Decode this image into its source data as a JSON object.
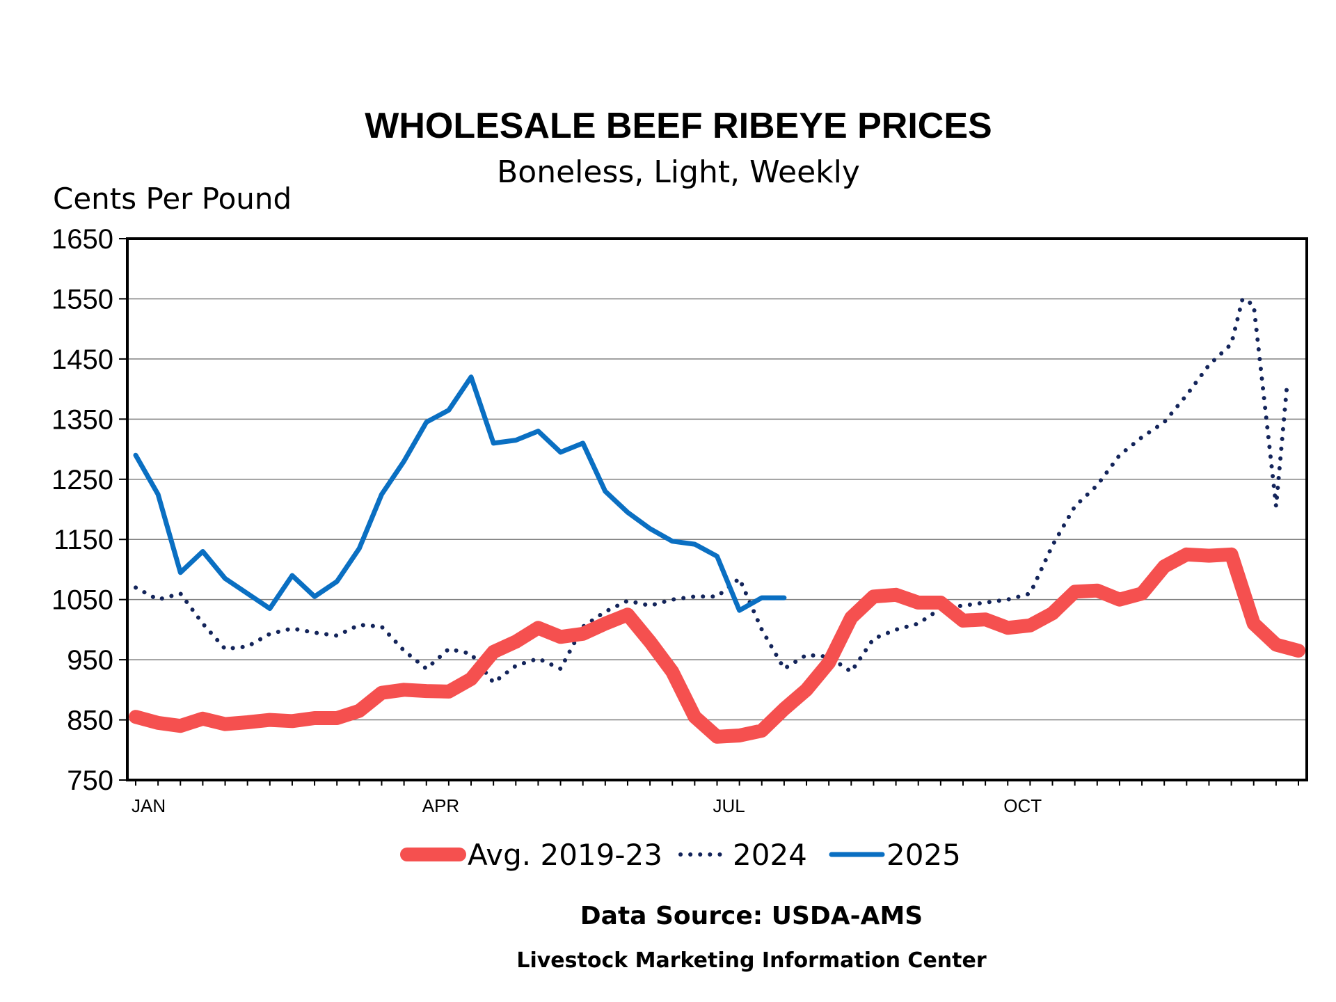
{
  "colors": {
    "avg": "#f5504f",
    "y2024": "#13245a",
    "y2025": "#0a6fc2",
    "grid": "#7f7f7f"
  },
  "chart_data": {
    "type": "line",
    "title": "WHOLESALE BEEF RIBEYE PRICES",
    "subtitle": "Boneless, Light, Weekly",
    "ylabel": "Cents Per Pound",
    "ylim": [
      750,
      1650
    ],
    "yticks": [
      750,
      850,
      950,
      1050,
      1150,
      1250,
      1350,
      1450,
      1550,
      1650
    ],
    "xlim": [
      1,
      53
    ],
    "xtick_labels": [
      {
        "week": 1,
        "label": "JAN"
      },
      {
        "week": 14,
        "label": "APR"
      },
      {
        "week": 27,
        "label": "JUL"
      },
      {
        "week": 40,
        "label": "OCT"
      }
    ],
    "grid": "horizontal",
    "legend_position": "bottom",
    "series": [
      {
        "name": "Avg. 2019-23",
        "style": "thick-solid",
        "x": [
          1,
          2,
          3,
          4,
          5,
          6,
          7,
          8,
          9,
          10,
          11,
          12,
          13,
          14,
          15,
          16,
          17,
          18,
          19,
          20,
          21,
          22,
          23,
          24,
          25,
          26,
          27,
          28,
          29,
          30,
          31,
          32,
          33,
          34,
          35,
          36,
          37,
          38,
          39,
          40,
          41,
          42,
          43,
          44,
          45,
          46,
          47,
          48,
          49,
          50,
          51,
          52,
          53
        ],
        "values": [
          855,
          845,
          840,
          852,
          843,
          846,
          850,
          848,
          853,
          853,
          865,
          895,
          900,
          898,
          897,
          918,
          963,
          980,
          1003,
          988,
          993,
          1010,
          1025,
          980,
          930,
          855,
          822,
          824,
          832,
          868,
          900,
          945,
          1020,
          1055,
          1058,
          1045,
          1045,
          1015,
          1017,
          1003,
          1007,
          1027,
          1063,
          1065,
          1050,
          1060,
          1105,
          1125,
          1123,
          1125,
          1010,
          975,
          965
        ]
      },
      {
        "name": "2024",
        "style": "dotted",
        "x": [
          1,
          2,
          3,
          4,
          5,
          6,
          7,
          8,
          9,
          10,
          11,
          12,
          13,
          14,
          15,
          16,
          17,
          18,
          19,
          20,
          21,
          22,
          23,
          24,
          25,
          26,
          27,
          28,
          29,
          30,
          31,
          32,
          33,
          34,
          35,
          36,
          37,
          38,
          39,
          40,
          41,
          42,
          43,
          44,
          45,
          46,
          47,
          48,
          49,
          50,
          50.5,
          51,
          52,
          52.5
        ],
        "values": [
          1070,
          1050,
          1060,
          1010,
          968,
          972,
          993,
          1002,
          995,
          990,
          1008,
          1005,
          965,
          935,
          968,
          960,
          912,
          940,
          952,
          935,
          1005,
          1030,
          1048,
          1040,
          1050,
          1055,
          1055,
          1085,
          1000,
          935,
          958,
          955,
          930,
          985,
          1000,
          1010,
          1035,
          1040,
          1045,
          1050,
          1060,
          1140,
          1205,
          1240,
          1290,
          1320,
          1345,
          1390,
          1440,
          1475,
          1550,
          1540,
          1205,
          1410
        ]
      },
      {
        "name": "2025",
        "style": "solid",
        "x": [
          1,
          2,
          3,
          4,
          5,
          6,
          7,
          8,
          9,
          10,
          11,
          12,
          13,
          14,
          15,
          16,
          17,
          18,
          19,
          20,
          21,
          22,
          23,
          24,
          25,
          26,
          27,
          28,
          29,
          30
        ],
        "values": [
          1290,
          1225,
          1095,
          1130,
          1085,
          1060,
          1035,
          1090,
          1055,
          1080,
          1135,
          1225,
          1280,
          1345,
          1365,
          1420,
          1310,
          1315,
          1330,
          1295,
          1310,
          1230,
          1195,
          1168,
          1147,
          1142,
          1122,
          1032,
          1053,
          1053
        ]
      }
    ]
  },
  "footer": {
    "source": "Data Source:  USDA-AMS",
    "credit": "Livestock Marketing Information Center"
  }
}
